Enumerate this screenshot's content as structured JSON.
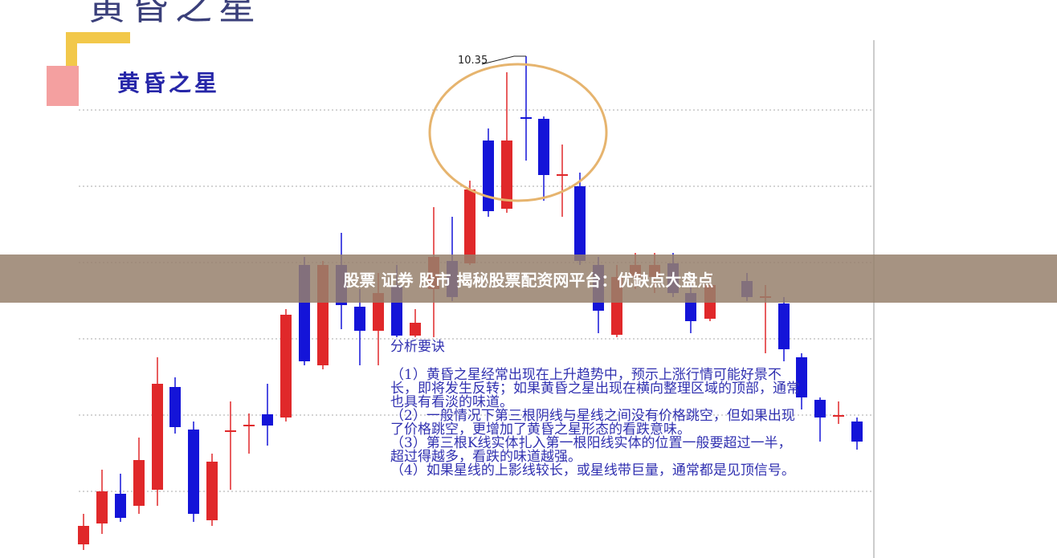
{
  "image": {
    "top_title": "黄昏之星",
    "inner_title": "黄昏之星",
    "peak_price_label": "10.35",
    "analysis": {
      "heading": "分析要诀",
      "points": [
        "（1）黄昏之星经常出现在上升趋势中，预示上涨行情可能好景不长，即将发生反转；如果黄昏之星出现在横向整理区域的顶部，通常也具有看淡的味道。",
        "（2）一般情况下第三根阴线与星线之间没有价格跳空，但如果出现了价格跳空，更增加了黄昏之星形态的看跌意味。",
        "（3）第三根K线实体扎入第一根阳线实体的位置一般要超过一半，超过得越多，看跌的味道越强。",
        "（4）如果星线的上影线较长，或星线带巨量，通常都是见顶信号。"
      ]
    },
    "colors": {
      "up": "#e0282a",
      "down": "#1414d8",
      "circle": "#e6b46e",
      "text": "#3030b0"
    }
  },
  "banner": {
    "title": "股票 证券 股市 揭秘股票配资网平台：优缺点大盘点"
  }
}
